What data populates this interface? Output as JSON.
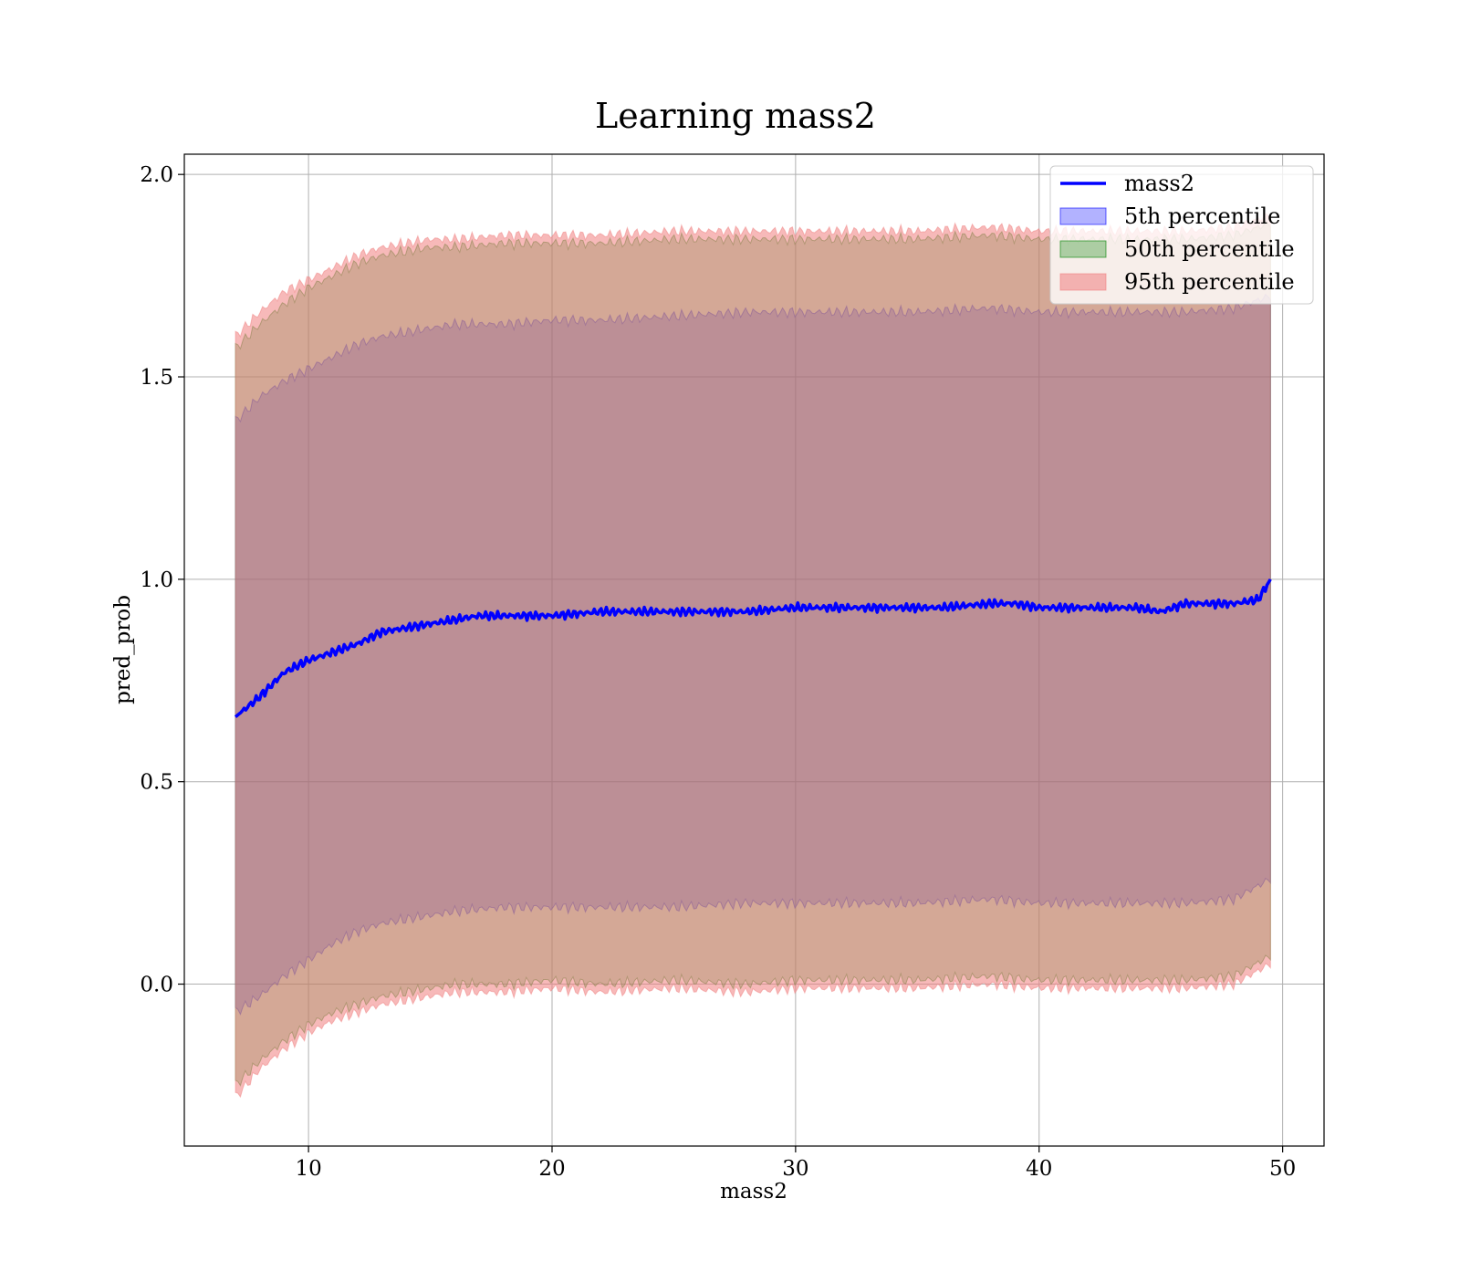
{
  "chart_data": {
    "type": "area",
    "title": "Learning mass2",
    "xlabel": "mass2",
    "ylabel": "pred_prob",
    "xlim": [
      4.9,
      51.7
    ],
    "ylim": [
      -0.4,
      2.05
    ],
    "x_ticks": [
      10,
      20,
      30,
      40,
      50
    ],
    "x_tick_labels": [
      "10",
      "20",
      "30",
      "40",
      "50"
    ],
    "y_ticks": [
      0.0,
      0.5,
      1.0,
      1.5,
      2.0
    ],
    "y_tick_labels": [
      "0.0",
      "0.5",
      "1.0",
      "1.5",
      "2.0"
    ],
    "grid": true,
    "legend_position": "top-right",
    "legend": [
      {
        "label": "mass2",
        "kind": "line",
        "color": "#0000ff"
      },
      {
        "label": "5th percentile",
        "kind": "patch",
        "color": "#0000ff"
      },
      {
        "label": "50th percentile",
        "kind": "patch",
        "color": "#008000"
      },
      {
        "label": "95th percentile",
        "kind": "patch",
        "color": "#f08080"
      }
    ],
    "line": {
      "name": "mass2",
      "color": "#0000ff",
      "x": [
        7.0,
        8.0,
        9.0,
        10.0,
        11.0,
        12.0,
        13.0,
        14.0,
        15.0,
        16.0,
        17.0,
        18.0,
        19.0,
        20.0,
        22.0,
        24.0,
        26.0,
        28.0,
        30.0,
        32.0,
        34.0,
        36.0,
        38.0,
        39.0,
        40.0,
        42.0,
        44.0,
        45.0,
        46.0,
        47.0,
        48.0,
        49.0,
        49.5
      ],
      "y": [
        0.66,
        0.71,
        0.77,
        0.8,
        0.82,
        0.84,
        0.87,
        0.88,
        0.89,
        0.9,
        0.91,
        0.91,
        0.91,
        0.91,
        0.92,
        0.92,
        0.92,
        0.92,
        0.93,
        0.93,
        0.93,
        0.93,
        0.94,
        0.94,
        0.93,
        0.93,
        0.93,
        0.92,
        0.94,
        0.94,
        0.94,
        0.95,
        1.0
      ]
    },
    "bands": [
      {
        "name": "5th percentile",
        "color": "#0000ff",
        "opacity": 0.3,
        "x": [
          7.0,
          8.0,
          9.0,
          10.0,
          11.0,
          12.0,
          13.0,
          14.0,
          15.0,
          16.0,
          18.0,
          20.0,
          22.0,
          25.0,
          28.0,
          30.0,
          32.0,
          35.0,
          38.0,
          40.0,
          42.0,
          44.0,
          46.0,
          48.0,
          49.5
        ],
        "lower": [
          -0.07,
          -0.03,
          0.02,
          0.06,
          0.1,
          0.13,
          0.15,
          0.16,
          0.17,
          0.18,
          0.19,
          0.19,
          0.19,
          0.19,
          0.2,
          0.2,
          0.2,
          0.2,
          0.21,
          0.2,
          0.2,
          0.2,
          0.2,
          0.21,
          0.26
        ],
        "upper": [
          1.39,
          1.45,
          1.49,
          1.52,
          1.55,
          1.58,
          1.6,
          1.61,
          1.62,
          1.63,
          1.63,
          1.64,
          1.64,
          1.65,
          1.66,
          1.66,
          1.66,
          1.66,
          1.67,
          1.66,
          1.66,
          1.66,
          1.66,
          1.67,
          1.7
        ]
      },
      {
        "name": "50th percentile",
        "color": "#008000",
        "opacity": 0.3,
        "x": [
          7.0,
          8.0,
          9.0,
          10.0,
          11.0,
          12.0,
          13.0,
          14.0,
          15.0,
          16.0,
          18.0,
          20.0,
          22.0,
          25.0,
          28.0,
          30.0,
          32.0,
          35.0,
          38.0,
          40.0,
          42.0,
          44.0,
          46.0,
          48.0,
          49.5
        ],
        "lower": [
          -0.25,
          -0.19,
          -0.14,
          -0.1,
          -0.07,
          -0.05,
          -0.03,
          -0.02,
          -0.01,
          0.0,
          0.0,
          0.01,
          0.0,
          0.01,
          0.0,
          0.01,
          0.01,
          0.01,
          0.02,
          0.01,
          0.01,
          0.01,
          0.01,
          0.02,
          0.07
        ],
        "upper": [
          1.57,
          1.63,
          1.68,
          1.72,
          1.75,
          1.78,
          1.8,
          1.81,
          1.82,
          1.82,
          1.83,
          1.83,
          1.83,
          1.84,
          1.84,
          1.84,
          1.84,
          1.84,
          1.85,
          1.84,
          1.84,
          1.84,
          1.84,
          1.85,
          1.88
        ]
      },
      {
        "name": "95th percentile",
        "color": "#f08080",
        "opacity": 0.55,
        "x": [
          7.0,
          8.0,
          9.0,
          10.0,
          11.0,
          12.0,
          13.0,
          14.0,
          15.0,
          16.0,
          18.0,
          20.0,
          22.0,
          25.0,
          28.0,
          30.0,
          32.0,
          35.0,
          38.0,
          40.0,
          42.0,
          44.0,
          46.0,
          48.0,
          49.5
        ],
        "lower": [
          -0.28,
          -0.21,
          -0.16,
          -0.12,
          -0.09,
          -0.07,
          -0.05,
          -0.04,
          -0.03,
          -0.02,
          -0.02,
          -0.01,
          -0.02,
          -0.01,
          -0.02,
          -0.01,
          -0.01,
          -0.01,
          0.0,
          -0.01,
          -0.01,
          -0.01,
          -0.01,
          0.0,
          0.05
        ],
        "upper": [
          1.6,
          1.66,
          1.71,
          1.74,
          1.77,
          1.8,
          1.82,
          1.83,
          1.84,
          1.84,
          1.85,
          1.85,
          1.85,
          1.86,
          1.86,
          1.86,
          1.86,
          1.86,
          1.87,
          1.86,
          1.86,
          1.86,
          1.86,
          1.87,
          1.9
        ]
      }
    ]
  }
}
